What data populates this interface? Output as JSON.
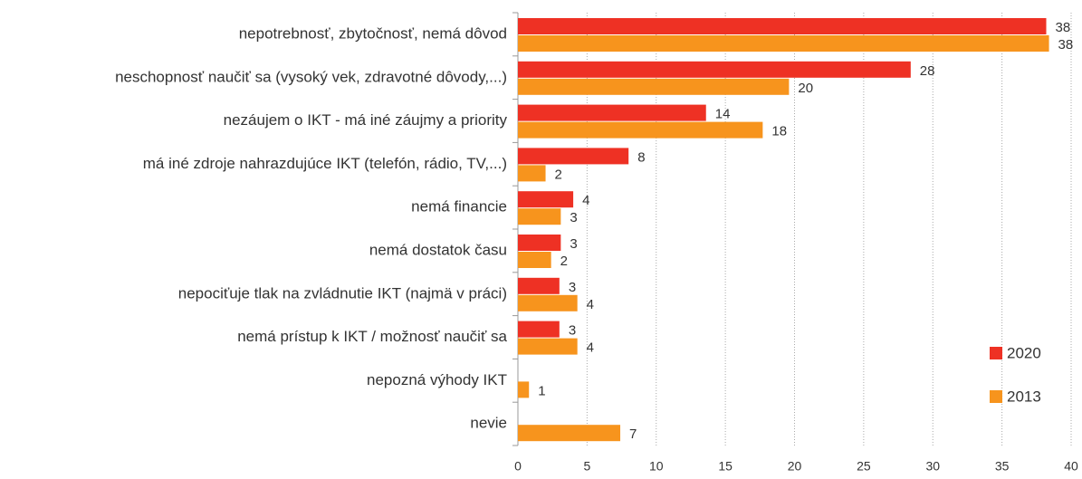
{
  "chart_data": {
    "type": "bar",
    "orientation": "horizontal",
    "categories": [
      "nepotrebnosť, zbytočnosť, nemá dôvod",
      "neschopnosť naučiť sa (vysoký vek, zdravotné dôvody,...)",
      "nezáujem o IKT - má iné záujmy a priority",
      "má iné zdroje nahrazdujúce IKT (telefón, rádio, TV,...)",
      "nemá financie",
      "nemá dostatok času",
      "nepociťuje tlak na zvládnutie IKT (najmä v práci)",
      "nemá prístup k IKT  / možnosť naučiť sa",
      "nepozná výhody IKT",
      "nevie"
    ],
    "series": [
      {
        "name": "2020",
        "color": "#ee3124",
        "values": [
          38.2,
          28.4,
          13.6,
          8.0,
          4.0,
          3.1,
          3.0,
          3.0,
          null,
          null
        ],
        "value_labels": [
          "38",
          "28",
          "14",
          "8",
          "4",
          "3",
          "3",
          "3",
          null,
          null
        ]
      },
      {
        "name": "2013",
        "color": "#f7941d",
        "values": [
          38.4,
          19.6,
          17.7,
          2.0,
          3.1,
          2.4,
          4.3,
          4.3,
          0.8,
          7.4
        ],
        "value_labels": [
          "38",
          "20",
          "18",
          "2",
          "3",
          "2",
          "4",
          "4",
          "1",
          "7"
        ]
      }
    ],
    "xlim": [
      0,
      40
    ],
    "xticks": [
      0,
      5,
      10,
      15,
      20,
      25,
      30,
      35,
      40
    ],
    "grid": true,
    "legend_position": "lower right"
  }
}
